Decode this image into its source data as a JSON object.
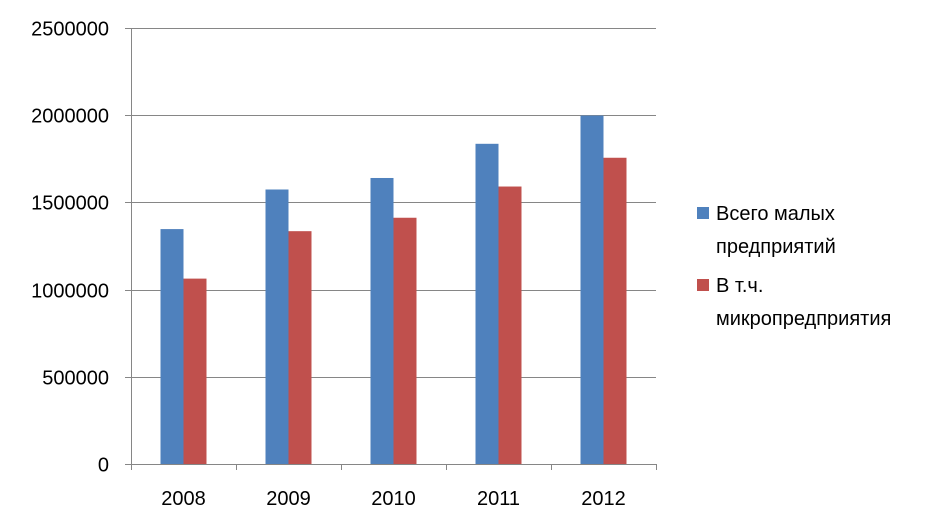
{
  "chart_data": {
    "type": "bar",
    "categories": [
      "2008",
      "2009",
      "2010",
      "2011",
      "2012"
    ],
    "series": [
      {
        "name": "Всего малых предприятий",
        "name_lines": [
          "Всего малых",
          "предприятий"
        ],
        "color": "#4F81BD",
        "values": [
          1347000,
          1574000,
          1640000,
          1836000,
          1998000
        ]
      },
      {
        "name": "В т.ч. микропредприятия",
        "name_lines": [
          "В т.ч.",
          "микропредприятия"
        ],
        "color": "#C0504D",
        "values": [
          1063000,
          1335000,
          1412000,
          1591000,
          1756000
        ]
      }
    ],
    "ylim": [
      0,
      2500000
    ],
    "y_ticks": [
      0,
      500000,
      1000000,
      1500000,
      2000000,
      2500000
    ],
    "y_tick_labels": [
      "0",
      "500000",
      "1000000",
      "1500000",
      "2000000",
      "2500000"
    ],
    "grid": true,
    "grid_color": "#868686",
    "axis_color": "#868686",
    "legend_position": "right",
    "title": "",
    "xlabel": "",
    "ylabel": ""
  }
}
